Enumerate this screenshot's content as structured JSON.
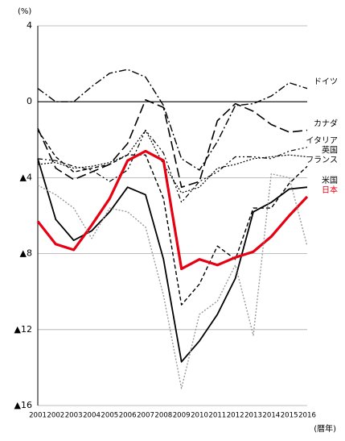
{
  "chart_data": {
    "type": "line",
    "y_unit": "(%)",
    "x_label": "(暦年)",
    "categories": [
      "2001",
      "2002",
      "2003",
      "2004",
      "2005",
      "2006",
      "2007",
      "2008",
      "2009",
      "2010",
      "2011",
      "2012",
      "2013",
      "2014",
      "2015",
      "2016"
    ],
    "ylim": [
      -16,
      4
    ],
    "yticks": [
      4,
      0,
      {
        "value": -4,
        "label": "▲4"
      },
      {
        "value": -8,
        "label": "▲8"
      },
      {
        "value": -12,
        "label": "▲12"
      },
      {
        "value": -16,
        "label": "▲16"
      }
    ],
    "grid": true,
    "series": [
      {
        "name": "ドイツ",
        "color": "#000000",
        "dash": "9,3,2,3",
        "width": 1.4,
        "values": [
          0.7,
          0.0,
          0.0,
          0.8,
          1.5,
          1.7,
          1.3,
          -0.2,
          -3.0,
          -3.6,
          -2.1,
          -0.2,
          -0.1,
          0.3,
          1.0,
          0.7
        ]
      },
      {
        "name": "カナダ",
        "color": "#000000",
        "dash": "12,5",
        "width": 1.6,
        "values": [
          -1.4,
          -3.5,
          -4.1,
          -3.7,
          -3.3,
          -2.2,
          0.1,
          -0.3,
          -4.5,
          -4.2,
          -1.0,
          -0.1,
          -0.5,
          -1.2,
          -1.6,
          -1.5
        ]
      },
      {
        "name": "イタリア",
        "color": "#000000",
        "dash": "6,3,2,3,2,3",
        "width": 1.2,
        "values": [
          -3.0,
          -3.1,
          -3.4,
          -3.6,
          -4.2,
          -3.6,
          -1.5,
          -2.7,
          -5.3,
          -4.2,
          -3.7,
          -2.9,
          -2.9,
          -3.0,
          -2.6,
          -2.4
        ]
      },
      {
        "name": "英国",
        "color": "#000000",
        "dash": "2,2",
        "width": 1.2,
        "values": [
          -3.3,
          -3.2,
          -3.5,
          -3.4,
          -3.2,
          -2.8,
          -1.5,
          -3.3,
          -4.8,
          -4.5,
          -3.5,
          -3.3,
          -3.0,
          -2.9,
          -2.8,
          -2.9
        ]
      },
      {
        "name": "フランス",
        "color": "#000000",
        "dash": "5,3",
        "width": 1.4,
        "values": [
          -1.5,
          -2.9,
          -3.7,
          -3.5,
          -3.3,
          -2.8,
          -2.8,
          -5.1,
          -10.7,
          -9.6,
          -7.6,
          -8.3,
          -5.6,
          -5.6,
          -4.3,
          -3.4
        ]
      },
      {
        "name": "米国",
        "color": "#000000",
        "dash": "",
        "width": 1.8,
        "values": [
          -3.0,
          -6.2,
          -7.3,
          -6.8,
          -5.8,
          -4.5,
          -4.9,
          -8.3,
          -13.7,
          -12.6,
          -11.2,
          -9.3,
          -5.8,
          -5.3,
          -4.6,
          -4.5
        ]
      },
      {
        "name": "日本",
        "color": "#e60012",
        "dash": "",
        "width": 3.2,
        "values": [
          -6.3,
          -7.5,
          -7.8,
          -6.5,
          -5.1,
          -3.1,
          -2.6,
          -3.1,
          -8.8,
          -8.3,
          -8.6,
          -8.2,
          -7.9,
          -7.1,
          -6.0,
          -5.0
        ]
      },
      {
        "color": "#9a9a9a",
        "dash": "2,2",
        "width": 1.4,
        "values": [
          -4.4,
          -4.9,
          -5.6,
          -7.2,
          -5.6,
          -5.8,
          -6.6,
          -10.2,
          -15.1,
          -11.2,
          -10.5,
          -8.6,
          -12.3,
          -3.8,
          -4.0,
          -7.6
        ]
      }
    ]
  }
}
